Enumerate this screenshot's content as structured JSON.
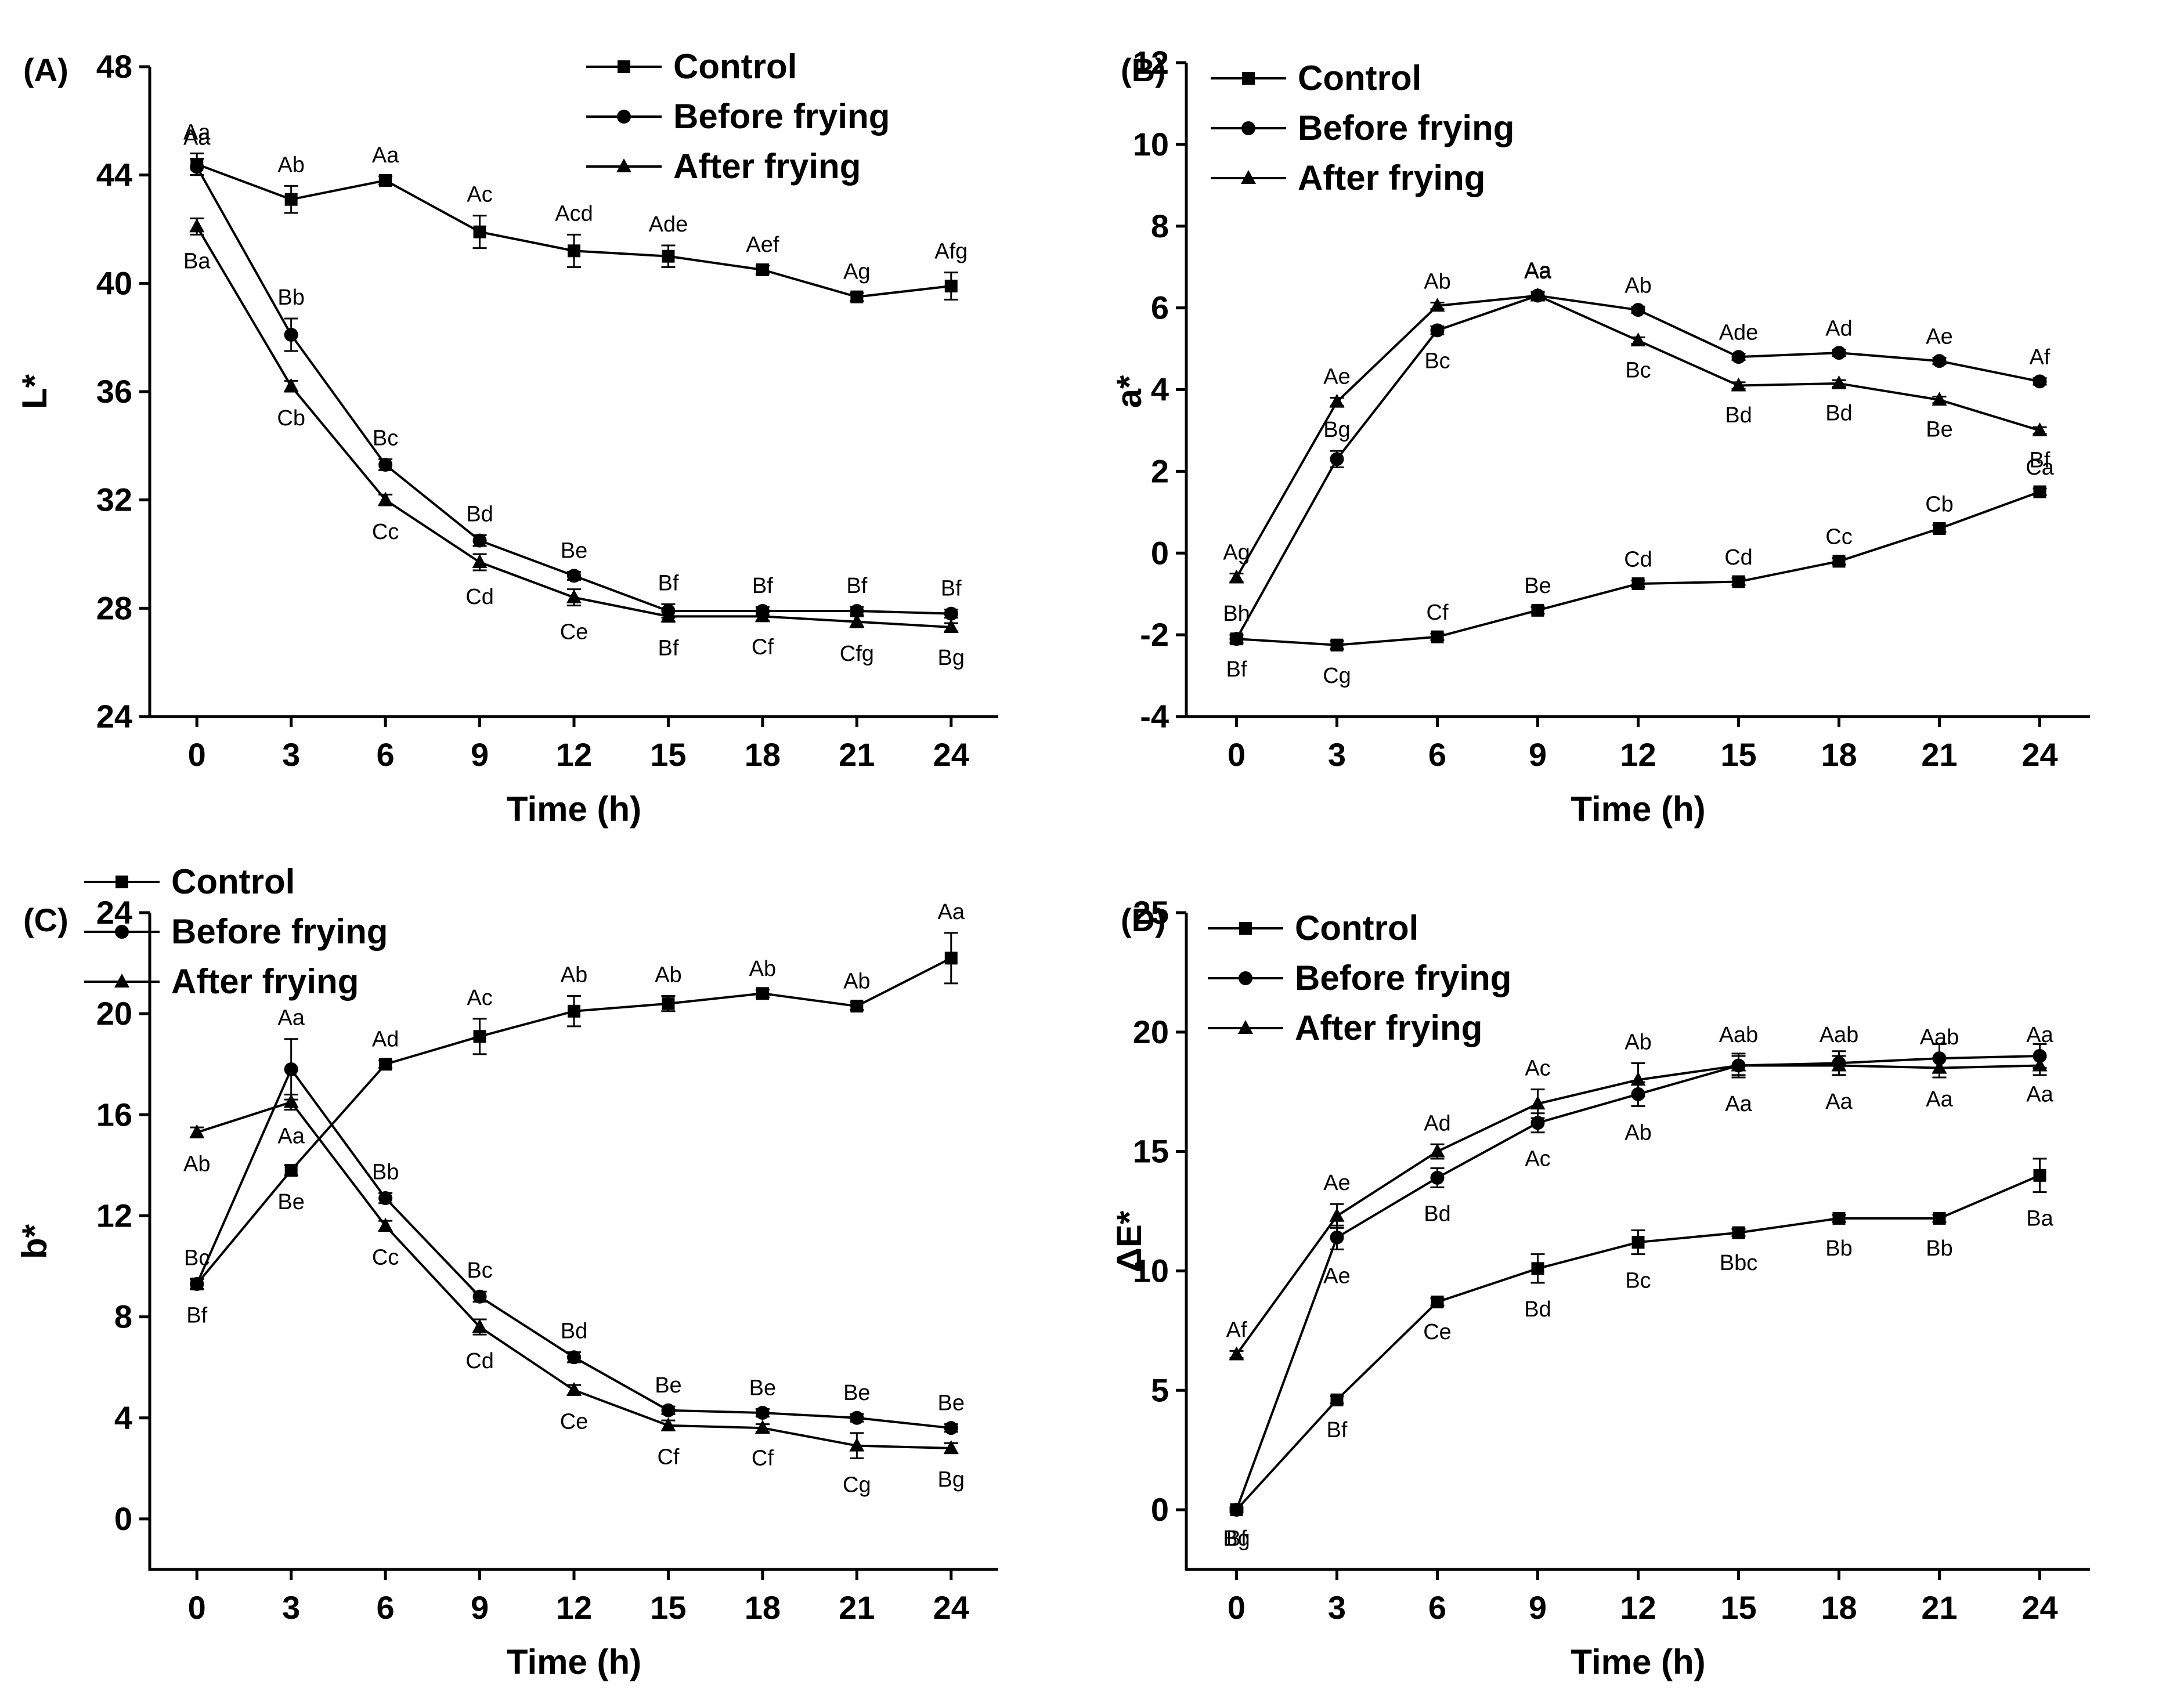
{
  "chart_data": [
    {
      "type": "line",
      "panel_label": "(A)",
      "title": "",
      "xlabel": "Time (h)",
      "ylabel": "L*",
      "x": [
        0,
        3,
        6,
        9,
        12,
        15,
        18,
        21,
        24
      ],
      "xticks": [
        "0",
        "3",
        "6",
        "9",
        "12",
        "15",
        "18",
        "21",
        "24"
      ],
      "xlim": [
        -1.5,
        25.5
      ],
      "ylim": [
        24,
        48
      ],
      "yticks": [
        "24",
        "28",
        "32",
        "36",
        "40",
        "44",
        "48"
      ],
      "legend_position": "top-right",
      "series": [
        {
          "name": "Control",
          "marker": "square",
          "values": [
            44.4,
            43.1,
            43.8,
            41.9,
            41.2,
            41.0,
            40.5,
            39.5,
            39.9
          ],
          "errors": [
            0.4,
            0.5,
            0.15,
            0.6,
            0.6,
            0.4,
            0.15,
            0.15,
            0.5
          ],
          "labels": [
            "Aa",
            "Ab",
            "Aa",
            "Ac",
            "Acd",
            "Ade",
            "Aef",
            "Ag",
            "Afg"
          ]
        },
        {
          "name": "Before frying",
          "marker": "circle",
          "values": [
            44.3,
            38.1,
            33.3,
            30.5,
            29.2,
            27.9,
            27.9,
            27.9,
            27.8
          ],
          "errors": [
            0.3,
            0.6,
            0.2,
            0.2,
            0.15,
            0.25,
            0.15,
            0.15,
            0.15
          ],
          "labels": [
            "Aa",
            "Bb",
            "Bc",
            "Bd",
            "Be",
            "Bf",
            "Bf",
            "Bf",
            "Bf"
          ]
        },
        {
          "name": "After frying",
          "marker": "triangle",
          "values": [
            42.1,
            36.2,
            32.0,
            29.7,
            28.4,
            27.7,
            27.7,
            27.5,
            27.3
          ],
          "errors": [
            0.3,
            0.2,
            0.2,
            0.3,
            0.3,
            0.2,
            0.15,
            0.2,
            0.15
          ],
          "labels": [
            "Ba",
            "Cb",
            "Cc",
            "Cd",
            "Ce",
            "Bf",
            "Cf",
            "Cfg",
            "Bg"
          ]
        }
      ]
    },
    {
      "type": "line",
      "panel_label": "(B)",
      "title": "",
      "xlabel": "Time (h)",
      "ylabel": "a*",
      "x": [
        0,
        3,
        6,
        9,
        12,
        15,
        18,
        21,
        24
      ],
      "xticks": [
        "0",
        "3",
        "6",
        "9",
        "12",
        "15",
        "18",
        "21",
        "24"
      ],
      "xlim": [
        -1.5,
        25.5
      ],
      "ylim": [
        -4,
        12
      ],
      "yticks": [
        "-4",
        "-2",
        "0",
        "2",
        "4",
        "6",
        "8",
        "10",
        "12"
      ],
      "legend_position": "top-left",
      "series": [
        {
          "name": "Control",
          "marker": "square",
          "values": [
            -2.1,
            -2.25,
            -2.05,
            -1.4,
            -0.75,
            -0.7,
            -0.2,
            0.6,
            1.5
          ],
          "errors": [
            0.1,
            0.1,
            0.08,
            0.08,
            0.08,
            0.08,
            0.08,
            0.08,
            0.08
          ],
          "labels": [
            "Bf",
            "Cg",
            "Cf",
            "Be",
            "Cd",
            "Cd",
            "Cc",
            "Cb",
            "Ca"
          ]
        },
        {
          "name": "Before frying",
          "marker": "circle",
          "values": [
            -2.1,
            2.3,
            5.45,
            6.3,
            5.95,
            4.8,
            4.9,
            4.7,
            4.2
          ],
          "errors": [
            0.1,
            0.2,
            0.1,
            0.1,
            0.08,
            0.08,
            0.08,
            0.08,
            0.08
          ],
          "labels": [
            "Bh",
            "Bg",
            "Bc",
            "Aa",
            "Ab",
            "Ade",
            "Ad",
            "Ae",
            "Af"
          ]
        },
        {
          "name": "After frying",
          "marker": "triangle",
          "values": [
            -0.6,
            3.7,
            6.05,
            6.3,
            5.2,
            4.1,
            4.15,
            3.75,
            3.0
          ],
          "errors": [
            0.1,
            0.1,
            0.08,
            0.08,
            0.08,
            0.08,
            0.08,
            0.08,
            0.08
          ],
          "labels": [
            "Ag",
            "Ae",
            "Ab",
            "Aa",
            "Bc",
            "Bd",
            "Bd",
            "Be",
            "Bf"
          ]
        }
      ]
    },
    {
      "type": "line",
      "panel_label": "(C)",
      "title": "",
      "xlabel": "Time (h)",
      "ylabel": "b*",
      "x": [
        0,
        3,
        6,
        9,
        12,
        15,
        18,
        21,
        24
      ],
      "xticks": [
        "0",
        "3",
        "6",
        "9",
        "12",
        "15",
        "18",
        "21",
        "24"
      ],
      "xlim": [
        -1.5,
        25.5
      ],
      "ylim": [
        -2,
        24
      ],
      "yticks": [
        "0",
        "4",
        "8",
        "12",
        "16",
        "20",
        "24"
      ],
      "legend_position": "top-left",
      "series": [
        {
          "name": "Control",
          "marker": "square",
          "values": [
            9.3,
            13.8,
            18.0,
            19.1,
            20.1,
            20.4,
            20.8,
            20.3,
            22.2
          ],
          "errors": [
            0.2,
            0.2,
            0.15,
            0.7,
            0.6,
            0.3,
            0.15,
            0.15,
            1.0
          ],
          "labels": [
            "Bf",
            "Be",
            "Ad",
            "Ac",
            "Ab",
            "Ab",
            "Ab",
            "Ab",
            "Aa"
          ]
        },
        {
          "name": "Before frying",
          "marker": "circle",
          "values": [
            9.3,
            17.8,
            12.7,
            8.8,
            6.4,
            4.3,
            4.2,
            4.0,
            3.6
          ],
          "errors": [
            0.2,
            1.2,
            0.2,
            0.2,
            0.2,
            0.15,
            0.15,
            0.15,
            0.15
          ],
          "labels": [
            "Bc",
            "Aa",
            "Bb",
            "Bc",
            "Bd",
            "Be",
            "Be",
            "Be",
            "Be"
          ]
        },
        {
          "name": "After frying",
          "marker": "triangle",
          "values": [
            15.3,
            16.5,
            11.6,
            7.6,
            5.1,
            3.7,
            3.6,
            2.9,
            2.8
          ],
          "errors": [
            0.2,
            0.3,
            0.2,
            0.3,
            0.2,
            0.2,
            0.15,
            0.5,
            0.2
          ],
          "labels": [
            "Ab",
            "Aa",
            "Cc",
            "Cd",
            "Ce",
            "Cf",
            "Cf",
            "Cg",
            "Bg"
          ]
        }
      ]
    },
    {
      "type": "line",
      "panel_label": "(D)",
      "title": "",
      "xlabel": "Time (h)",
      "ylabel": "ΔE*",
      "x": [
        0,
        3,
        6,
        9,
        12,
        15,
        18,
        21,
        24
      ],
      "xticks": [
        "0",
        "3",
        "6",
        "9",
        "12",
        "15",
        "18",
        "21",
        "24"
      ],
      "xlim": [
        -1.5,
        25.5
      ],
      "ylim": [
        -2.5,
        25
      ],
      "yticks": [
        "0",
        "5",
        "10",
        "15",
        "20",
        "25"
      ],
      "legend_position": "top-left",
      "series": [
        {
          "name": "Control",
          "marker": "square",
          "values": [
            0.0,
            4.6,
            8.7,
            10.1,
            11.2,
            11.6,
            12.2,
            12.2,
            14.0
          ],
          "errors": [
            0.1,
            0.15,
            0.15,
            0.6,
            0.5,
            0.15,
            0.15,
            0.15,
            0.7
          ],
          "labels": [
            "Bg",
            "Bf",
            "Ce",
            "Bd",
            "Bc",
            "Bbc",
            "Bb",
            "Bb",
            "Ba"
          ]
        },
        {
          "name": "Before frying",
          "marker": "circle",
          "values": [
            0.0,
            11.4,
            13.9,
            16.2,
            17.4,
            18.6,
            18.7,
            18.9,
            19.0
          ],
          "errors": [
            0.1,
            0.5,
            0.4,
            0.4,
            0.5,
            0.5,
            0.5,
            0.6,
            0.5
          ],
          "labels": [
            "Bf",
            "Ae",
            "Bd",
            "Ac",
            "Ab",
            "Aa",
            "Aa",
            "Aa",
            "Aa"
          ]
        },
        {
          "name": "After frying",
          "marker": "triangle",
          "values": [
            6.5,
            12.3,
            15.0,
            17.0,
            18.0,
            18.6,
            18.6,
            18.5,
            18.6
          ],
          "errors": [
            0.15,
            0.5,
            0.3,
            0.6,
            0.7,
            0.4,
            0.4,
            0.4,
            0.4
          ],
          "labels": [
            "Af",
            "Ae",
            "Ad",
            "Ac",
            "Ab",
            "Aab",
            "Aab",
            "Aab",
            "Aa"
          ]
        }
      ]
    }
  ]
}
